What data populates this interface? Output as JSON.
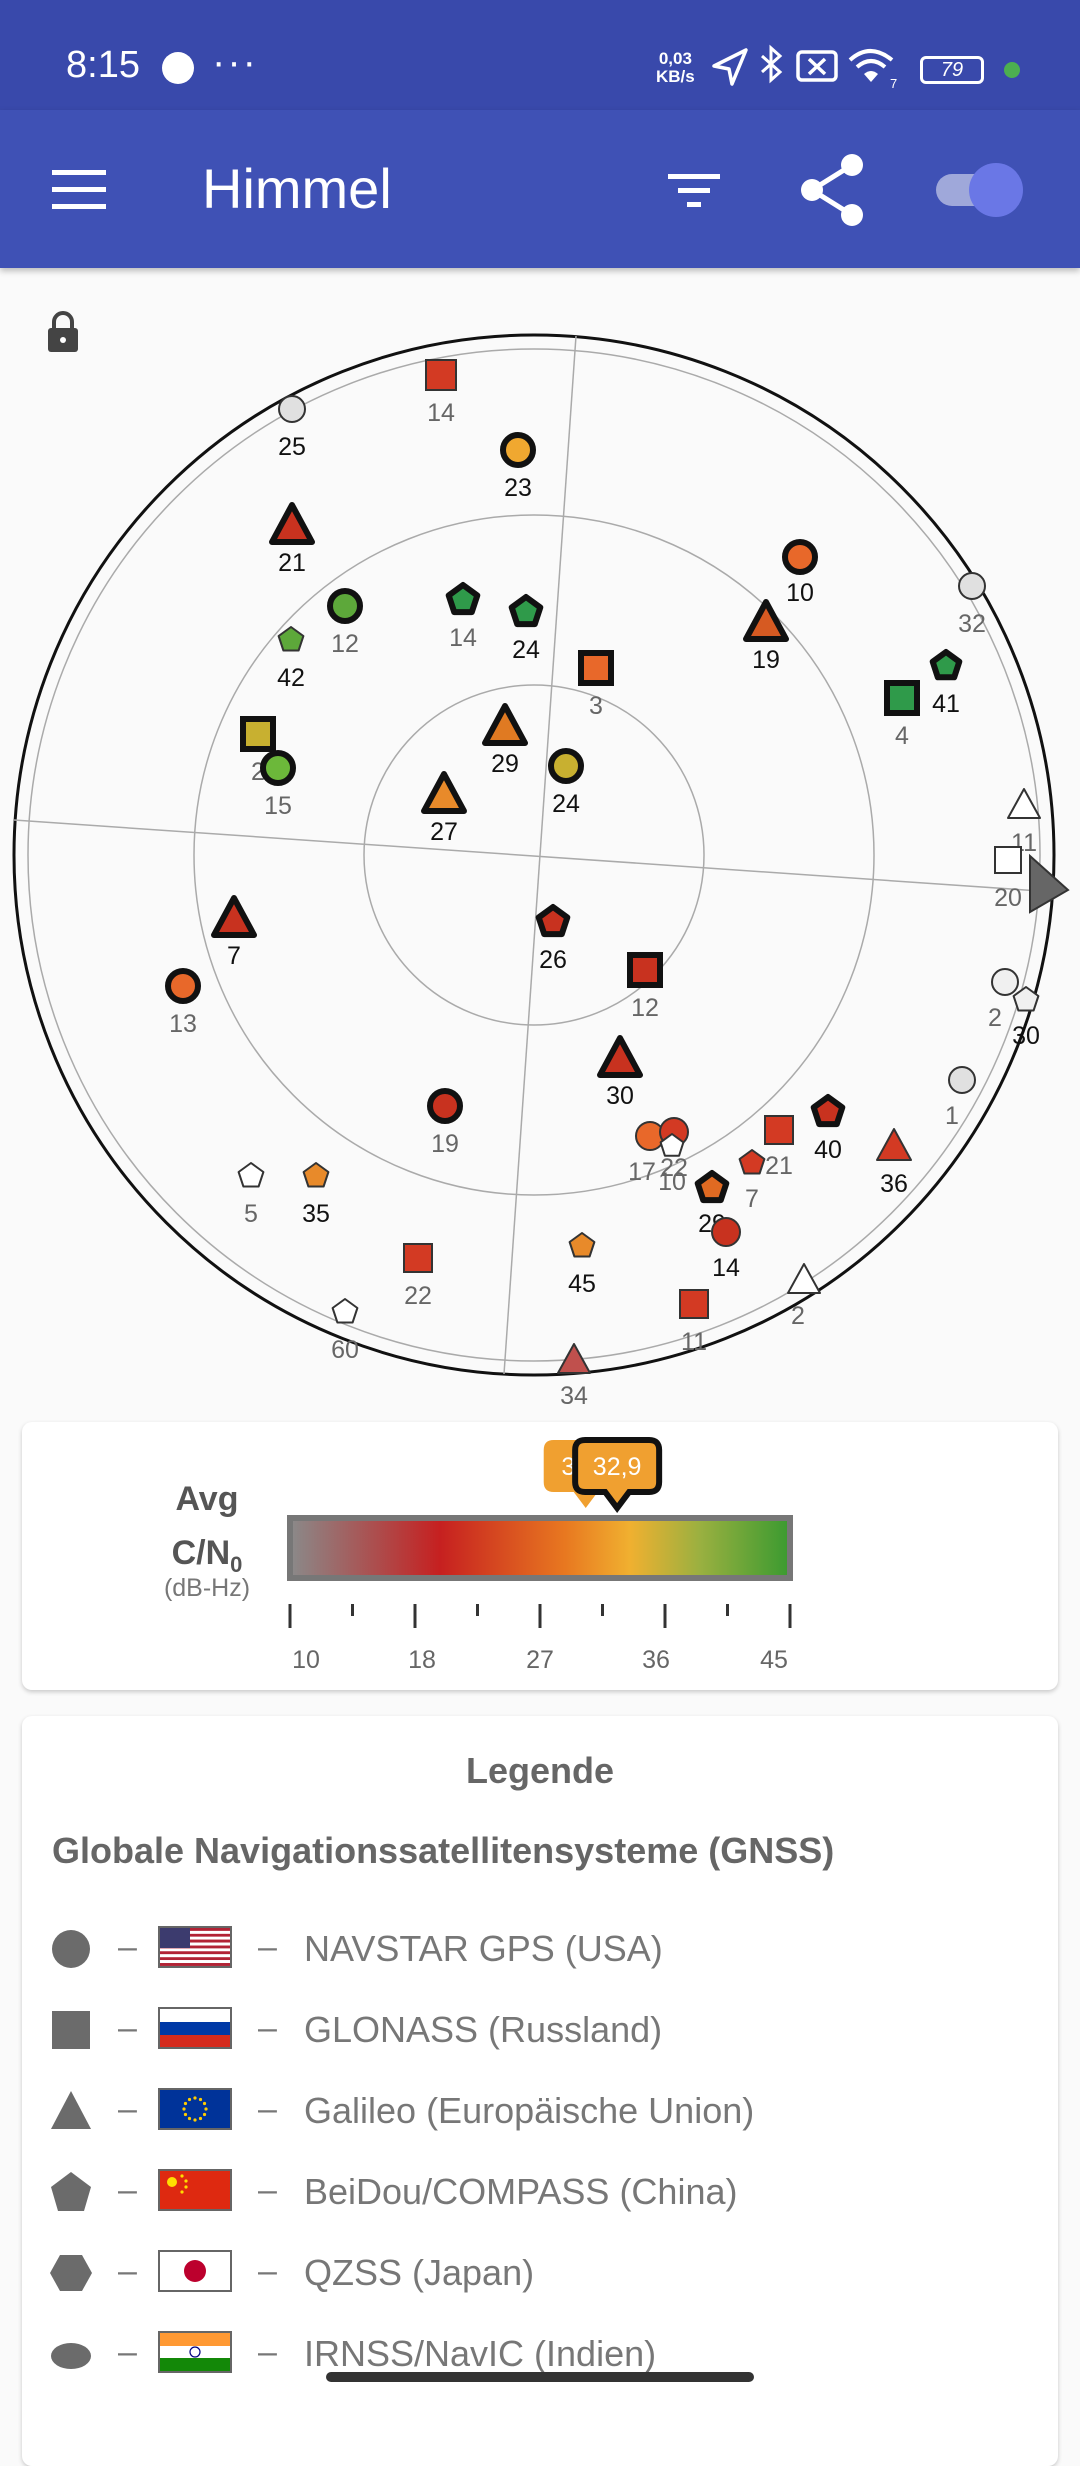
{
  "status_bar": {
    "time": "8:15",
    "more": "···",
    "net_speed_value": "0,03",
    "net_speed_unit": "KB/s",
    "battery": "79"
  },
  "app_bar": {
    "title": "Himmel",
    "icons": [
      "menu-icon",
      "filter-icon",
      "share-icon",
      "toggle-switch"
    ],
    "accent": "#3f51b5"
  },
  "sky_view": {
    "satellites": [
      {
        "id": "14",
        "system": "GLONASS",
        "color": "#d33a23"
      },
      {
        "id": "25",
        "system": "GPS",
        "color": "#e0e0e0"
      },
      {
        "id": "23",
        "system": "GPS",
        "color": "#f0a830"
      },
      {
        "id": "21",
        "system": "Galileo",
        "color": "#c8321f"
      },
      {
        "id": "10",
        "system": "GPS",
        "color": "#e8682a"
      },
      {
        "id": "32",
        "system": "GPS",
        "color": "#e0e0e0"
      },
      {
        "id": "12",
        "system": "GPS",
        "color": "#5da83a"
      },
      {
        "id": "42",
        "system": "BeiDou",
        "color": "#5da83a"
      },
      {
        "id": "14",
        "system": "BeiDou",
        "color": "#2f9a4a"
      },
      {
        "id": "24",
        "system": "BeiDou",
        "color": "#2f9a4a"
      },
      {
        "id": "19",
        "system": "Galileo",
        "color": "#d65a22"
      },
      {
        "id": "41",
        "system": "BeiDou",
        "color": "#2f9a4a"
      },
      {
        "id": "4",
        "system": "GLONASS",
        "color": "#2f9a4a"
      },
      {
        "id": "3",
        "system": "GLONASS",
        "color": "#e8682a"
      },
      {
        "id": "2",
        "system": "GLONASS",
        "color": "#c8b030"
      },
      {
        "id": "15",
        "system": "GPS",
        "color": "#6cb83a"
      },
      {
        "id": "29",
        "system": "Galileo",
        "color": "#e07a22"
      },
      {
        "id": "24",
        "system": "GPS",
        "color": "#c8b030"
      },
      {
        "id": "27",
        "system": "Galileo",
        "color": "#e88a2a"
      },
      {
        "id": "11",
        "system": "Galileo",
        "color": "#ffffff"
      },
      {
        "id": "20",
        "system": "GLONASS",
        "color": "#ffffff"
      },
      {
        "id": "7",
        "system": "Galileo",
        "color": "#c8321f"
      },
      {
        "id": "26",
        "system": "BeiDou",
        "color": "#c8321f"
      },
      {
        "id": "12",
        "system": "GLONASS",
        "color": "#c8321f"
      },
      {
        "id": "13",
        "system": "GPS",
        "color": "#e8682a"
      },
      {
        "id": "2",
        "system": "GPS",
        "color": "#f0f0f0"
      },
      {
        "id": "30",
        "system": "BeiDou",
        "color": "#f0f0f0"
      },
      {
        "id": "30",
        "system": "Galileo",
        "color": "#c8321f"
      },
      {
        "id": "1",
        "system": "GPS",
        "color": "#e0e0e0"
      },
      {
        "id": "19",
        "system": "GPS",
        "color": "#c8321f"
      },
      {
        "id": "17",
        "system": "GPS",
        "color": "#e8682a"
      },
      {
        "id": "22",
        "system": "GPS",
        "color": "#d33a23"
      },
      {
        "id": "10",
        "system": "BeiDou",
        "color": "#ffffff"
      },
      {
        "id": "21",
        "system": "GLONASS",
        "color": "#d33a23"
      },
      {
        "id": "40",
        "system": "BeiDou",
        "color": "#c8321f"
      },
      {
        "id": "36",
        "system": "Galileo",
        "color": "#d33a23"
      },
      {
        "id": "7",
        "system": "BeiDou",
        "color": "#d33a23"
      },
      {
        "id": "29",
        "system": "BeiDou",
        "color": "#e06a22"
      },
      {
        "id": "14",
        "system": "GPS",
        "color": "#c8321f"
      },
      {
        "id": "5",
        "system": "BeiDou",
        "color": "#ffffff"
      },
      {
        "id": "35",
        "system": "BeiDou",
        "color": "#e88a2a"
      },
      {
        "id": "22",
        "system": "GLONASS",
        "color": "#d33a23"
      },
      {
        "id": "45",
        "system": "BeiDou",
        "color": "#e88a2a"
      },
      {
        "id": "11",
        "system": "GLONASS",
        "color": "#d33a23"
      },
      {
        "id": "2",
        "system": "Galileo",
        "color": "#ffffff"
      },
      {
        "id": "60",
        "system": "BeiDou",
        "color": "#ffffff"
      },
      {
        "id": "34",
        "system": "Galileo",
        "color": "#c0504d"
      }
    ]
  },
  "cn0": {
    "label_line1": "Avg",
    "label_line2_main": "C/N",
    "label_line2_sub": "0",
    "unit": "(dB-Hz)",
    "avg_all": 30.7,
    "avg_all_label": "30,7",
    "avg_used": 32.9,
    "avg_used_label": "32,9",
    "min": 10,
    "max": 45,
    "tick_labels": [
      "10",
      "18",
      "27",
      "36",
      "45"
    ]
  },
  "legend": {
    "title": "Legende",
    "subtitle": "Globale Navigationssatellitensysteme (GNSS)",
    "dash": "–",
    "items": [
      {
        "shape": "circle",
        "flag": "usa-flag",
        "name": "NAVSTAR GPS (USA)"
      },
      {
        "shape": "square",
        "flag": "russia-flag",
        "name": "GLONASS (Russland)"
      },
      {
        "shape": "triangle",
        "flag": "eu-flag",
        "name": "Galileo (Europäische Union)"
      },
      {
        "shape": "pentagon",
        "flag": "china-flag",
        "name": "BeiDou/COMPASS (China)"
      },
      {
        "shape": "hexagon",
        "flag": "japan-flag",
        "name": "QZSS (Japan)"
      },
      {
        "shape": "ellipse",
        "flag": "india-flag",
        "name": "IRNSS/NavIC (Indien)"
      }
    ]
  }
}
